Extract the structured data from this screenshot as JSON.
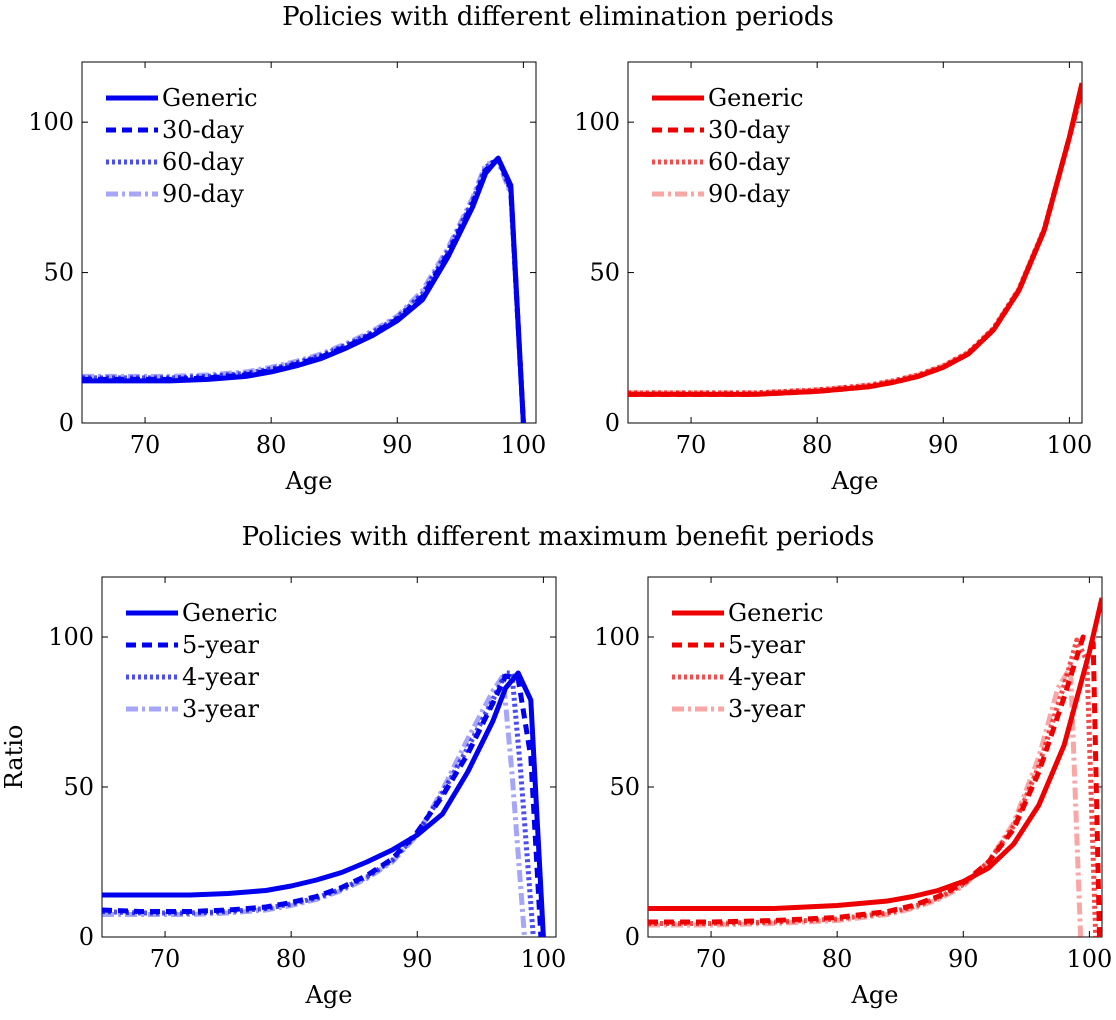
{
  "section_titles": {
    "top": "Policies with different elimination periods",
    "bottom": "Policies with different maximum benefit periods"
  },
  "colors": {
    "blue": "#0000ee",
    "red": "#ee0000"
  },
  "chart_data": [
    {
      "type": "line",
      "xlabel": "Age",
      "ylabel": "",
      "xlim": [
        65,
        101
      ],
      "ylim": [
        0,
        120
      ],
      "xticks": [
        70,
        80,
        90,
        100
      ],
      "yticks": [
        0,
        50,
        100
      ],
      "legend_position": "top-left",
      "color": "#0000ee",
      "series": [
        {
          "name": "Generic",
          "style": "solid",
          "opacity": 1,
          "x": [
            65,
            68,
            72,
            75,
            78,
            80,
            82,
            84,
            86,
            88,
            90,
            92,
            94,
            96,
            97,
            98,
            99,
            100
          ],
          "y": [
            14,
            14,
            14,
            14.5,
            15.5,
            17,
            19,
            21.5,
            25,
            29,
            34,
            41,
            55,
            72,
            83,
            88,
            79,
            0
          ]
        },
        {
          "name": "30-day",
          "style": "dashed",
          "opacity": 1,
          "x": [
            65,
            68,
            72,
            75,
            78,
            80,
            82,
            84,
            86,
            88,
            90,
            92,
            94,
            96,
            97,
            98,
            99,
            100
          ],
          "y": [
            14.5,
            14.5,
            14.5,
            15,
            16,
            17.5,
            19.5,
            22,
            25.5,
            29.5,
            34.5,
            42,
            56,
            73,
            84,
            88,
            78,
            0
          ]
        },
        {
          "name": "60-day",
          "style": "dotted",
          "opacity": 0.7,
          "x": [
            65,
            68,
            72,
            75,
            78,
            80,
            82,
            84,
            86,
            88,
            90,
            92,
            94,
            96,
            97,
            98,
            99,
            100
          ],
          "y": [
            15,
            15,
            15,
            15.5,
            16.5,
            18,
            20,
            22.5,
            26,
            30,
            35,
            43,
            57,
            74,
            85,
            88,
            77,
            0
          ]
        },
        {
          "name": "90-day",
          "style": "dashdot",
          "opacity": 0.35,
          "x": [
            65,
            68,
            72,
            75,
            78,
            80,
            82,
            84,
            86,
            88,
            90,
            92,
            94,
            96,
            97,
            98,
            99,
            100
          ],
          "y": [
            15.5,
            15.5,
            15.5,
            16,
            17,
            18.5,
            20.5,
            23,
            26.5,
            30.5,
            35.5,
            44,
            58,
            75,
            86,
            87,
            76,
            0
          ]
        }
      ]
    },
    {
      "type": "line",
      "xlabel": "Age",
      "ylabel": "",
      "xlim": [
        65,
        101
      ],
      "ylim": [
        0,
        120
      ],
      "xticks": [
        70,
        80,
        90,
        100
      ],
      "yticks": [
        0,
        50,
        100
      ],
      "legend_position": "top-left",
      "color": "#ee0000",
      "series": [
        {
          "name": "Generic",
          "style": "solid",
          "opacity": 1,
          "x": [
            65,
            70,
            75,
            80,
            84,
            86,
            88,
            90,
            92,
            94,
            96,
            98,
            100,
            101
          ],
          "y": [
            9.5,
            9.5,
            9.5,
            10.5,
            12,
            13.5,
            15.5,
            18.5,
            23,
            31,
            44,
            64,
            95,
            113
          ]
        },
        {
          "name": "30-day",
          "style": "dashed",
          "opacity": 1,
          "x": [
            65,
            70,
            75,
            80,
            84,
            86,
            88,
            90,
            92,
            94,
            96,
            98,
            100,
            101
          ],
          "y": [
            9.5,
            9.5,
            9.5,
            10.5,
            12,
            13.5,
            15.5,
            18.5,
            23,
            31,
            44,
            64,
            95,
            112
          ]
        },
        {
          "name": "60-day",
          "style": "dotted",
          "opacity": 0.7,
          "x": [
            65,
            70,
            75,
            80,
            84,
            86,
            88,
            90,
            92,
            94,
            96,
            98,
            100,
            101
          ],
          "y": [
            10,
            10,
            10,
            11,
            12.5,
            14,
            16,
            19,
            23.5,
            31.5,
            44.5,
            64.5,
            95,
            111
          ]
        },
        {
          "name": "90-day",
          "style": "dashdot",
          "opacity": 0.35,
          "x": [
            65,
            70,
            75,
            80,
            84,
            86,
            88,
            90,
            92,
            94,
            96,
            98,
            100,
            101
          ],
          "y": [
            10,
            10,
            10,
            11,
            12.5,
            14,
            16,
            19,
            23.5,
            31.5,
            44.5,
            64.5,
            95,
            110
          ]
        }
      ]
    },
    {
      "type": "line",
      "xlabel": "Age",
      "ylabel": "Ratio",
      "xlim": [
        65,
        101
      ],
      "ylim": [
        0,
        120
      ],
      "xticks": [
        70,
        80,
        90,
        100
      ],
      "yticks": [
        0,
        50,
        100
      ],
      "legend_position": "top-left",
      "color": "#0000ee",
      "series": [
        {
          "name": "Generic",
          "style": "solid",
          "opacity": 1,
          "x": [
            65,
            68,
            72,
            75,
            78,
            80,
            82,
            84,
            86,
            88,
            90,
            92,
            94,
            96,
            97,
            98,
            99,
            100
          ],
          "y": [
            14,
            14,
            14,
            14.5,
            15.5,
            17,
            19,
            21.5,
            25,
            29,
            34,
            41,
            55,
            72,
            83,
            88,
            79,
            0
          ]
        },
        {
          "name": "5-year",
          "style": "dashed",
          "opacity": 1,
          "x": [
            65,
            68,
            72,
            75,
            78,
            80,
            82,
            84,
            86,
            88,
            90,
            92,
            94,
            96,
            97,
            98,
            99,
            99.8
          ],
          "y": [
            9,
            8.5,
            8.5,
            9,
            10,
            11.5,
            13.5,
            16.5,
            20.5,
            26,
            35,
            47,
            61,
            78,
            87,
            86,
            60,
            0
          ]
        },
        {
          "name": "4-year",
          "style": "dotted",
          "opacity": 0.7,
          "x": [
            65,
            68,
            72,
            75,
            78,
            80,
            82,
            84,
            86,
            88,
            90,
            92,
            94,
            96,
            97,
            97.5,
            98.2,
            99.2
          ],
          "y": [
            8.5,
            8,
            8,
            8.5,
            9.5,
            11,
            13,
            16,
            20,
            25.5,
            34.5,
            48,
            63,
            79,
            88,
            88,
            55,
            0
          ]
        },
        {
          "name": "3-year",
          "style": "dashdot",
          "opacity": 0.35,
          "x": [
            65,
            68,
            72,
            75,
            78,
            80,
            82,
            84,
            86,
            88,
            90,
            92,
            94,
            96,
            96.8,
            97.5,
            98.5
          ],
          "y": [
            7.5,
            7.5,
            7.5,
            8,
            9,
            10.5,
            12.5,
            15.5,
            19.5,
            25,
            34,
            49,
            66,
            82,
            87,
            55,
            0
          ]
        }
      ]
    },
    {
      "type": "line",
      "xlabel": "Age",
      "ylabel": "",
      "xlim": [
        65,
        101
      ],
      "ylim": [
        0,
        120
      ],
      "xticks": [
        70,
        80,
        90,
        100
      ],
      "yticks": [
        0,
        50,
        100
      ],
      "legend_position": "top-left",
      "color": "#ee0000",
      "series": [
        {
          "name": "Generic",
          "style": "solid",
          "opacity": 1,
          "x": [
            65,
            70,
            75,
            80,
            84,
            86,
            88,
            90,
            92,
            94,
            96,
            98,
            100,
            101
          ],
          "y": [
            9.5,
            9.5,
            9.5,
            10.5,
            12,
            13.5,
            15.5,
            18.5,
            23,
            31,
            44,
            64,
            95,
            113
          ]
        },
        {
          "name": "5-year",
          "style": "dashed",
          "opacity": 1,
          "x": [
            65,
            70,
            75,
            80,
            84,
            86,
            88,
            90,
            92,
            94,
            96,
            98,
            99.5,
            100.3,
            100.8
          ],
          "y": [
            5,
            5,
            5.5,
            6.5,
            8.5,
            10.5,
            13.5,
            18,
            25,
            36,
            55,
            80,
            100,
            98,
            0
          ]
        },
        {
          "name": "4-year",
          "style": "dotted",
          "opacity": 0.7,
          "x": [
            65,
            70,
            75,
            80,
            84,
            86,
            88,
            90,
            92,
            94,
            96,
            98,
            99,
            99.8,
            100.5
          ],
          "y": [
            4.5,
            4.5,
            5,
            6,
            8,
            10,
            13,
            17.5,
            25,
            37,
            57,
            84,
            99,
            92,
            0
          ]
        },
        {
          "name": "3-year",
          "style": "dashdot",
          "opacity": 0.35,
          "x": [
            65,
            70,
            75,
            80,
            84,
            86,
            88,
            90,
            92,
            94,
            96,
            97.5,
            98.5,
            99.3
          ],
          "y": [
            4,
            4,
            4.5,
            5.5,
            7.5,
            9.5,
            12.5,
            17,
            25,
            38,
            60,
            83,
            90,
            0
          ]
        }
      ]
    }
  ]
}
